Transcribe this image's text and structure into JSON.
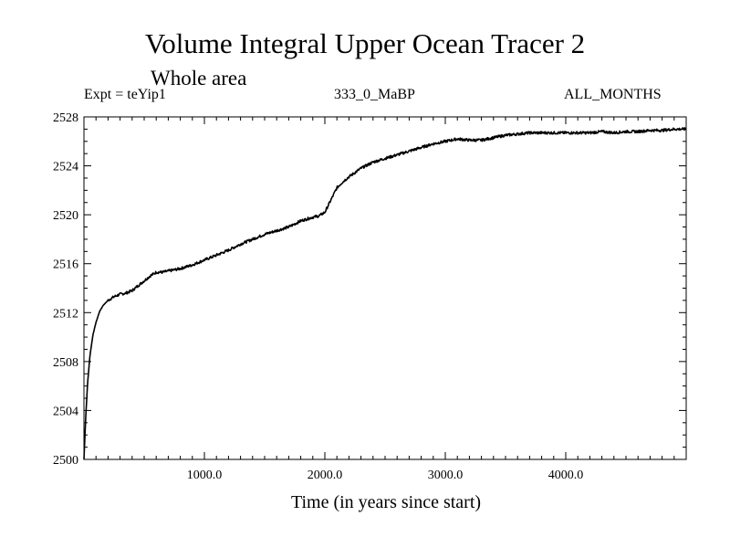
{
  "chart_data": {
    "type": "line",
    "title": "Volume Integral Upper Ocean Tracer 2",
    "subtitle": "Whole area",
    "annotations": {
      "left": "Expt = teYip1",
      "center": "333_0_MaBP",
      "right": "ALL_MONTHS"
    },
    "xlabel": "Time (in years since start)",
    "ylabel": "",
    "xlim": [
      0,
      5000
    ],
    "ylim": [
      2500,
      2528
    ],
    "x_ticks": [
      1000,
      2000,
      3000,
      4000
    ],
    "x_tick_labels": [
      "1000.0",
      "2000.0",
      "3000.0",
      "4000.0"
    ],
    "y_ticks": [
      2500,
      2504,
      2508,
      2512,
      2516,
      2520,
      2524,
      2528
    ],
    "y_tick_labels": [
      "2500",
      "2504",
      "2508",
      "2512",
      "2516",
      "2520",
      "2524",
      "2528"
    ],
    "series": [
      {
        "name": "Volume Integral Upper Ocean Tracer 2",
        "x": [
          0,
          15,
          30,
          50,
          75,
          100,
          130,
          160,
          200,
          250,
          300,
          350,
          400,
          450,
          500,
          550,
          600,
          650,
          700,
          800,
          900,
          1000,
          1100,
          1200,
          1300,
          1400,
          1500,
          1600,
          1700,
          1800,
          1900,
          1950,
          2000,
          2050,
          2100,
          2150,
          2200,
          2300,
          2400,
          2500,
          2600,
          2700,
          2800,
          2900,
          3000,
          3100,
          3200,
          3300,
          3400,
          3500,
          3600,
          3700,
          3800,
          3900,
          4000,
          4100,
          4200,
          4300,
          4400,
          4500,
          4600,
          4700,
          4800,
          4900,
          5000
        ],
        "values": [
          2500.0,
          2503.5,
          2506.2,
          2508.5,
          2510.2,
          2511.2,
          2512.1,
          2512.6,
          2513.0,
          2513.3,
          2513.5,
          2513.6,
          2513.8,
          2514.2,
          2514.6,
          2515.0,
          2515.3,
          2515.3,
          2515.4,
          2515.6,
          2515.9,
          2516.3,
          2516.7,
          2517.1,
          2517.6,
          2518.0,
          2518.4,
          2518.7,
          2519.0,
          2519.5,
          2519.8,
          2519.9,
          2520.2,
          2521.2,
          2522.2,
          2522.7,
          2523.1,
          2523.8,
          2524.3,
          2524.6,
          2524.9,
          2525.2,
          2525.5,
          2525.8,
          2526.0,
          2526.2,
          2526.1,
          2526.1,
          2526.3,
          2526.5,
          2526.6,
          2526.7,
          2526.7,
          2526.7,
          2526.7,
          2526.7,
          2526.7,
          2526.8,
          2526.7,
          2526.8,
          2526.8,
          2526.9,
          2526.9,
          2527.0,
          2527.0
        ]
      }
    ]
  }
}
